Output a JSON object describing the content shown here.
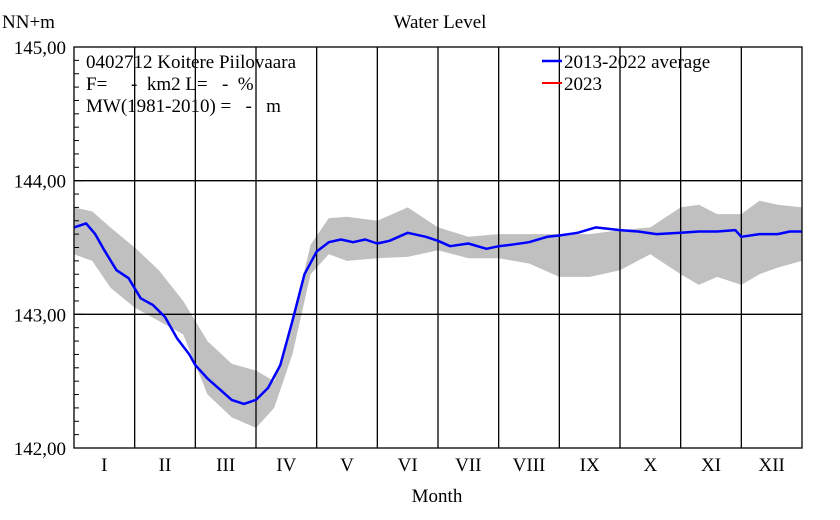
{
  "chart_data": {
    "type": "line",
    "title": "Water Level",
    "ylabel": "NN+m",
    "xlabel": "Month",
    "ylim": [
      142.0,
      145.0
    ],
    "yticks": [
      "142,00",
      "143,00",
      "144,00",
      "145,00"
    ],
    "ytick_values": [
      142.0,
      143.0,
      144.0,
      145.0
    ],
    "categories": [
      "I",
      "II",
      "III",
      "IV",
      "V",
      "VI",
      "VII",
      "VIII",
      "IX",
      "X",
      "XI",
      "XII"
    ],
    "annotations": [
      "0402712 Koitere Piilovaara",
      "F=     -  km2 L=   -  %",
      "MW(1981-2010) =   -   m"
    ],
    "legend_position": "top-right",
    "grid": true,
    "series": [
      {
        "name": "2013-2022 average",
        "color": "#0000ff",
        "x": [
          0,
          0.2,
          0.35,
          0.5,
          0.7,
          0.9,
          1.1,
          1.3,
          1.5,
          1.7,
          1.9,
          2.0,
          2.2,
          2.4,
          2.6,
          2.8,
          3.0,
          3.2,
          3.4,
          3.6,
          3.8,
          4.0,
          4.2,
          4.4,
          4.6,
          4.8,
          5.0,
          5.2,
          5.5,
          5.8,
          6.0,
          6.2,
          6.5,
          6.8,
          7.0,
          7.2,
          7.5,
          7.8,
          8.0,
          8.3,
          8.6,
          9.0,
          9.3,
          9.6,
          10.0,
          10.3,
          10.6,
          10.9,
          11.0,
          11.3,
          11.6,
          11.8,
          12.0
        ],
        "y": [
          143.65,
          143.68,
          143.6,
          143.48,
          143.33,
          143.27,
          143.12,
          143.07,
          142.98,
          142.82,
          142.7,
          142.62,
          142.52,
          142.44,
          142.36,
          142.33,
          142.36,
          142.45,
          142.62,
          142.95,
          143.3,
          143.47,
          143.54,
          143.56,
          143.54,
          143.56,
          143.53,
          143.55,
          143.61,
          143.58,
          143.55,
          143.51,
          143.53,
          143.49,
          143.51,
          143.52,
          143.54,
          143.58,
          143.59,
          143.61,
          143.65,
          143.63,
          143.62,
          143.6,
          143.61,
          143.62,
          143.62,
          143.63,
          143.58,
          143.6,
          143.6,
          143.62,
          143.62
        ]
      },
      {
        "name": "2023",
        "color": "#ff0000",
        "x": [],
        "y": []
      }
    ],
    "range_band": {
      "color": "#c0c0c0",
      "x": [
        0,
        0.3,
        0.6,
        1.0,
        1.4,
        1.8,
        2.2,
        2.6,
        3.0,
        3.3,
        3.6,
        3.9,
        4.2,
        4.5,
        5.0,
        5.5,
        6.0,
        6.5,
        7.0,
        7.5,
        8.0,
        8.5,
        9.0,
        9.5,
        10.0,
        10.3,
        10.6,
        11.0,
        11.3,
        11.6,
        12.0
      ],
      "upper": [
        143.8,
        143.77,
        143.65,
        143.5,
        143.33,
        143.1,
        142.8,
        142.63,
        142.58,
        142.5,
        142.95,
        143.52,
        143.72,
        143.73,
        143.7,
        143.8,
        143.65,
        143.58,
        143.6,
        143.6,
        143.6,
        143.6,
        143.63,
        143.65,
        143.8,
        143.82,
        143.75,
        143.75,
        143.85,
        143.82,
        143.8
      ],
      "lower": [
        143.45,
        143.4,
        143.2,
        143.05,
        142.95,
        142.85,
        142.4,
        142.23,
        142.15,
        142.3,
        142.7,
        143.3,
        143.45,
        143.4,
        143.42,
        143.43,
        143.48,
        143.42,
        143.42,
        143.38,
        143.28,
        143.28,
        143.33,
        143.45,
        143.3,
        143.22,
        143.28,
        143.22,
        143.3,
        143.35,
        143.4
      ]
    }
  }
}
